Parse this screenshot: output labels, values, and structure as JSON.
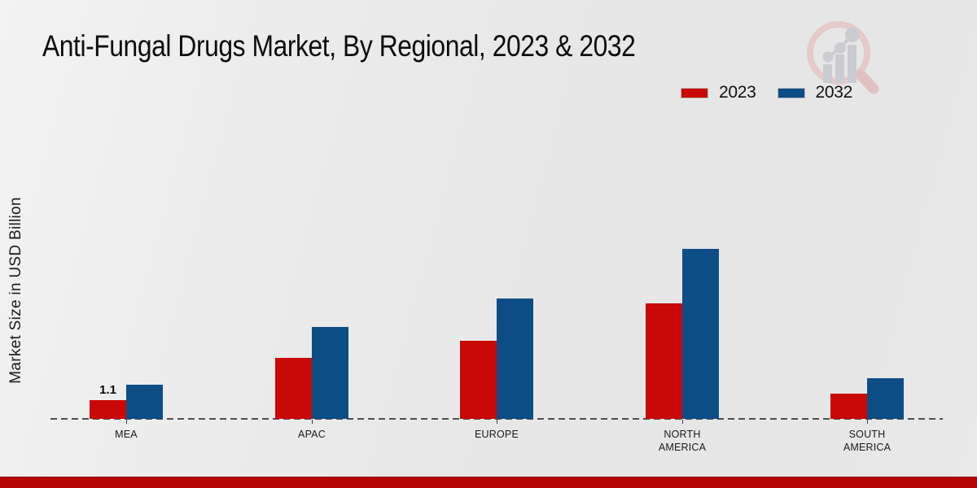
{
  "title": "Anti-Fungal Drugs Market, By Regional, 2023 & 2032",
  "y_axis_label": "Market Size in USD Billion",
  "legend": [
    {
      "label": "2023",
      "color": "#c90808"
    },
    {
      "label": "2032",
      "color": "#0d4d86"
    }
  ],
  "watermark_icon": "magnifier-bar-chart-logo-icon",
  "colors": {
    "series_2023": "#c90808",
    "series_2032": "#0d4d86",
    "axis": "#3a3a3a",
    "footer_accent": "#b50505",
    "watermark_ring": "#e6c6c6",
    "watermark_bars": "#c7cad0"
  },
  "chart_data": {
    "type": "bar",
    "categories": [
      "MEA",
      "APAC",
      "EUROPE",
      "NORTH AMERICA",
      "SOUTH AMERICA"
    ],
    "series": [
      {
        "name": "2023",
        "color": "#c90808",
        "values": [
          1.1,
          3.6,
          4.6,
          6.8,
          1.5
        ]
      },
      {
        "name": "2032",
        "color": "#0d4d86",
        "values": [
          2.0,
          5.4,
          7.1,
          10.0,
          2.4
        ]
      }
    ],
    "annotations": [
      {
        "category_index": 0,
        "series_index": 0,
        "text": "1.1"
      }
    ],
    "title": "Anti-Fungal Drugs Market, By Regional, 2023 & 2032",
    "xlabel": "",
    "ylabel": "Market Size in USD Billion",
    "ylim": [
      0,
      10.5
    ],
    "grid": false,
    "y_axis_ticks_visible": false,
    "baseline_style": "dashed",
    "legend_position": "top-right"
  }
}
